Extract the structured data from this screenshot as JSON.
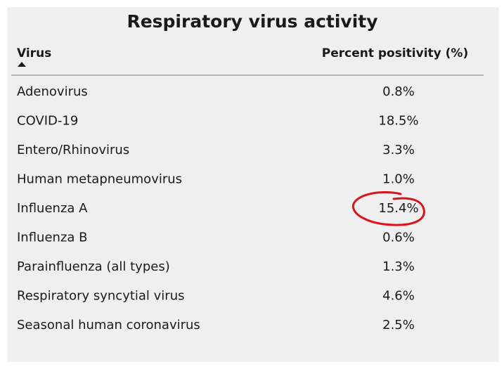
{
  "title": "Respiratory virus activity",
  "table": {
    "header": [
      "Virus",
      "Percent positivity (%)"
    ],
    "rows": [
      [
        "Adenovirus",
        "0.8%"
      ],
      [
        "COVID-19",
        "18.5%"
      ],
      [
        "Entero/Rhinovirus",
        "3.3%"
      ],
      [
        "Human metapneumovirus",
        "1.0%"
      ],
      [
        "Influenza A",
        "15.4%"
      ],
      [
        "Influenza B",
        "0.6%"
      ],
      [
        "Parainfluenza (all types)",
        "1.3%"
      ],
      [
        "Respiratory syncytial virus",
        "4.6%"
      ],
      [
        "Seasonal human coronavirus",
        "2.5%"
      ]
    ]
  }
}
